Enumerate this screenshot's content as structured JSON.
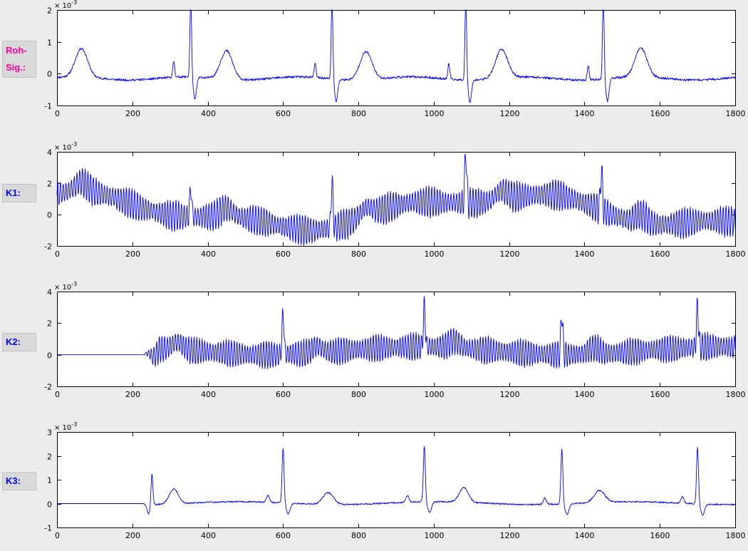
{
  "figure": {
    "background": "#ececec",
    "plot_background": "#ffffff",
    "axis_color": "#000000",
    "line_color": "#0000ff"
  },
  "labels": [
    {
      "lines": [
        "Roh-",
        "Sig.:"
      ],
      "color": "#ff0099"
    },
    {
      "lines": [
        "K1:"
      ],
      "color": "#0000ff"
    },
    {
      "lines": [
        "K2:"
      ],
      "color": "#0000ff"
    },
    {
      "lines": [
        "K3:"
      ],
      "color": "#0000ff"
    }
  ],
  "chart_data": [
    {
      "type": "line",
      "name": "roh-sig",
      "title": "",
      "xlabel": "",
      "ylabel": "",
      "grid": false,
      "xlim": [
        0,
        1800
      ],
      "ylim": [
        -1,
        2
      ],
      "xticks": [
        0,
        200,
        400,
        600,
        800,
        1000,
        1200,
        1400,
        1600,
        1800
      ],
      "yticks": [
        -1,
        0,
        1,
        2
      ],
      "y_exponent": {
        "mantissa": "× 10",
        "power": "-3"
      },
      "line_color": "#0000ff",
      "signal": {
        "seed": 11,
        "baseline": -0.15,
        "noise": 0.035,
        "wander": [
          {
            "amp": 0.05,
            "period": 300,
            "phase": 0.7
          }
        ],
        "bumps": [
          {
            "x": 65,
            "amp": 0.9,
            "w": 16
          },
          {
            "x": 450,
            "amp": 0.9,
            "w": 16
          },
          {
            "x": 820,
            "amp": 0.88,
            "w": 16
          },
          {
            "x": 1180,
            "amp": 0.9,
            "w": 16
          },
          {
            "x": 1550,
            "amp": 0.9,
            "w": 16
          },
          {
            "x": 310,
            "amp": 0.5,
            "w": 2.5
          },
          {
            "x": 685,
            "amp": 0.45,
            "w": 2.5
          },
          {
            "x": 1040,
            "amp": 0.5,
            "w": 2.5
          },
          {
            "x": 1410,
            "amp": 0.45,
            "w": 2.5
          },
          {
            "x": 355,
            "amp": 2.6,
            "w": 2.2
          },
          {
            "x": 366,
            "amp": -0.7,
            "w": 4
          },
          {
            "x": 730,
            "amp": 2.55,
            "w": 2.2
          },
          {
            "x": 741,
            "amp": -0.7,
            "w": 4
          },
          {
            "x": 1085,
            "amp": 2.6,
            "w": 2.2
          },
          {
            "x": 1096,
            "amp": -0.7,
            "w": 4
          },
          {
            "x": 1450,
            "amp": 2.6,
            "w": 2.2
          },
          {
            "x": 1461,
            "amp": -0.7,
            "w": 4
          }
        ]
      }
    },
    {
      "type": "line",
      "name": "k1",
      "title": "",
      "xlabel": "",
      "ylabel": "",
      "grid": false,
      "xlim": [
        0,
        1800
      ],
      "ylim": [
        -2,
        4
      ],
      "xticks": [
        0,
        200,
        400,
        600,
        800,
        1000,
        1200,
        1400,
        1600,
        1800
      ],
      "yticks": [
        -2,
        0,
        2,
        4
      ],
      "y_exponent": {
        "mantissa": "× 10",
        "power": "-3"
      },
      "line_color": "#0000ff",
      "signal": {
        "seed": 22,
        "baseline": 0.2,
        "noise": 0.07,
        "wander": [
          {
            "amp": 0.95,
            "period": 1150,
            "phase": 1.4
          },
          {
            "amp": 0.35,
            "period": 420,
            "phase": 0.5
          }
        ],
        "osc": {
          "amp": 1.0,
          "period": 7.3,
          "env_period": 113,
          "env_depth": 0.45
        },
        "bumps": [
          {
            "x": 65,
            "amp": 0.6,
            "w": 16
          },
          {
            "x": 450,
            "amp": 0.55,
            "w": 16
          },
          {
            "x": 820,
            "amp": 0.55,
            "w": 16
          },
          {
            "x": 1180,
            "amp": 0.6,
            "w": 16
          },
          {
            "x": 1550,
            "amp": 0.55,
            "w": 16
          },
          {
            "x": 355,
            "amp": 1.9,
            "w": 2.5
          },
          {
            "x": 730,
            "amp": 3.0,
            "w": 2.5
          },
          {
            "x": 1085,
            "amp": 3.3,
            "w": 2.5
          },
          {
            "x": 1445,
            "amp": 2.6,
            "w": 2.5
          }
        ]
      }
    },
    {
      "type": "line",
      "name": "k2",
      "title": "",
      "xlabel": "",
      "ylabel": "",
      "grid": false,
      "xlim": [
        0,
        1800
      ],
      "ylim": [
        -2,
        4
      ],
      "xticks": [
        0,
        200,
        400,
        600,
        800,
        1000,
        1200,
        1400,
        1600,
        1800
      ],
      "yticks": [
        -2,
        0,
        2,
        4
      ],
      "y_exponent": {
        "mantissa": "× 10",
        "power": "-3"
      },
      "line_color": "#0000ff",
      "signal": {
        "seed": 33,
        "baseline": 0.25,
        "noise": 0.06,
        "flat_until": 230,
        "flat_value": 0,
        "ramp": 40,
        "wander": [
          {
            "amp": 0.25,
            "period": 800,
            "phase": 0.3
          }
        ],
        "osc": {
          "amp": 0.9,
          "period": 7.1,
          "env_period": 97,
          "env_depth": 0.4
        },
        "bumps": [
          {
            "x": 255,
            "amp": -0.6,
            "w": 8
          },
          {
            "x": 320,
            "amp": 0.45,
            "w": 14
          },
          {
            "x": 690,
            "amp": 0.4,
            "w": 14
          },
          {
            "x": 1055,
            "amp": 0.45,
            "w": 14
          },
          {
            "x": 1425,
            "amp": 0.4,
            "w": 14
          },
          {
            "x": 600,
            "amp": 2.7,
            "w": 2.5
          },
          {
            "x": 975,
            "amp": 2.65,
            "w": 2.5
          },
          {
            "x": 1340,
            "amp": 2.65,
            "w": 2.5
          },
          {
            "x": 1700,
            "amp": 2.65,
            "w": 2.5
          }
        ]
      }
    },
    {
      "type": "line",
      "name": "k3",
      "title": "",
      "xlabel": "",
      "ylabel": "",
      "grid": false,
      "xlim": [
        0,
        1800
      ],
      "ylim": [
        -1,
        3
      ],
      "xticks": [
        0,
        200,
        400,
        600,
        800,
        1000,
        1200,
        1400,
        1600,
        1800
      ],
      "yticks": [
        -1,
        0,
        1,
        2,
        3
      ],
      "y_exponent": {
        "mantissa": "× 10",
        "power": "-3"
      },
      "line_color": "#0000ff",
      "signal": {
        "seed": 44,
        "baseline": 0.02,
        "noise": 0.03,
        "flat_until": 228,
        "flat_value": 0,
        "ramp": 14,
        "wander": [
          {
            "amp": 0.06,
            "period": 520,
            "phase": 2.0
          }
        ],
        "bumps": [
          {
            "x": 243,
            "amp": -0.4,
            "w": 5
          },
          {
            "x": 252,
            "amp": 1.35,
            "w": 2.5
          },
          {
            "x": 310,
            "amp": 0.62,
            "w": 12
          },
          {
            "x": 560,
            "amp": 0.28,
            "w": 4
          },
          {
            "x": 600,
            "amp": 2.3,
            "w": 2.6
          },
          {
            "x": 614,
            "amp": -0.45,
            "w": 5
          },
          {
            "x": 720,
            "amp": 0.5,
            "w": 14
          },
          {
            "x": 930,
            "amp": 0.28,
            "w": 4
          },
          {
            "x": 975,
            "amp": 2.35,
            "w": 2.6
          },
          {
            "x": 989,
            "amp": -0.45,
            "w": 5
          },
          {
            "x": 1080,
            "amp": 0.62,
            "w": 12
          },
          {
            "x": 1295,
            "amp": 0.28,
            "w": 4
          },
          {
            "x": 1340,
            "amp": 2.3,
            "w": 2.6
          },
          {
            "x": 1354,
            "amp": -0.45,
            "w": 5
          },
          {
            "x": 1440,
            "amp": 0.5,
            "w": 14
          },
          {
            "x": 1660,
            "amp": 0.28,
            "w": 4
          },
          {
            "x": 1700,
            "amp": 2.35,
            "w": 2.6
          },
          {
            "x": 1714,
            "amp": -0.45,
            "w": 5
          }
        ]
      }
    }
  ]
}
